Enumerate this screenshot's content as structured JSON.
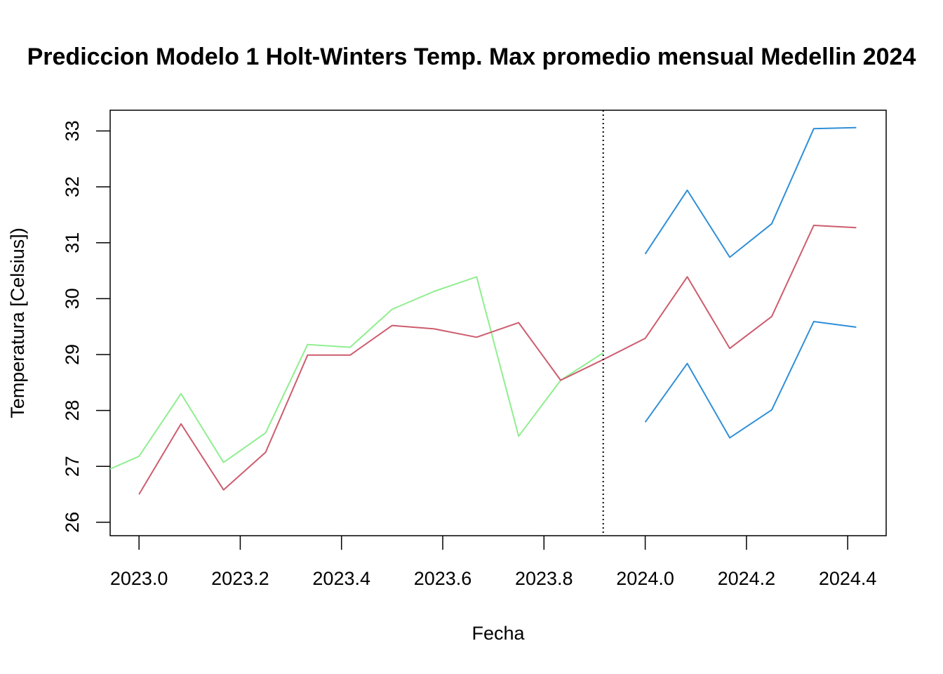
{
  "chart_data": {
    "type": "line",
    "title": "Prediccion Modelo 1 Holt-Winters Temp. Max promedio mensual Medellin 2024",
    "xlabel": "Fecha",
    "ylabel": "Temperatura [Celsius])",
    "xlim": [
      2022.943,
      2024.476
    ],
    "ylim": [
      25.76,
      33.37
    ],
    "x_ticks": [
      "2023.0",
      "2023.2",
      "2023.4",
      "2023.6",
      "2023.8",
      "2024.0",
      "2024.2",
      "2024.4"
    ],
    "y_ticks": [
      "26",
      "27",
      "28",
      "29",
      "30",
      "31",
      "32",
      "33"
    ],
    "grid": false,
    "legend": "none",
    "vertical_line": {
      "x": 2023.917,
      "style": "dotted"
    },
    "series": [
      {
        "color": "#90ee90",
        "x": [
          2022.917,
          2023.0,
          2023.083,
          2023.167,
          2023.25,
          2023.333,
          2023.417,
          2023.5,
          2023.583,
          2023.667,
          2023.75,
          2023.833,
          2023.917
        ],
        "values": [
          26.85,
          27.18,
          28.3,
          27.07,
          27.6,
          29.18,
          29.13,
          29.81,
          30.13,
          30.39,
          27.54,
          28.54,
          29.03
        ]
      },
      {
        "color": "#cd5c6e",
        "x": [
          2023.0,
          2023.083,
          2023.167,
          2023.25,
          2023.333,
          2023.417,
          2023.5,
          2023.583,
          2023.667,
          2023.75,
          2023.833,
          2023.917,
          2024.0,
          2024.083,
          2024.167,
          2024.25,
          2024.333,
          2024.417
        ],
        "values": [
          26.5,
          27.76,
          26.58,
          27.25,
          28.99,
          28.99,
          29.52,
          29.46,
          29.31,
          29.57,
          28.54,
          28.91,
          29.29,
          30.39,
          29.11,
          29.68,
          31.31,
          31.27
        ]
      },
      {
        "color": "#2f8fd8",
        "x": [
          2024.0,
          2024.083,
          2024.167,
          2024.25,
          2024.333,
          2024.417
        ],
        "values": [
          30.8,
          31.94,
          30.74,
          31.34,
          33.04,
          33.06
        ]
      },
      {
        "color": "#2f8fd8",
        "x": [
          2024.0,
          2024.083,
          2024.167,
          2024.25,
          2024.333,
          2024.417
        ],
        "values": [
          27.79,
          28.84,
          27.51,
          28.01,
          29.59,
          29.49
        ]
      }
    ]
  }
}
